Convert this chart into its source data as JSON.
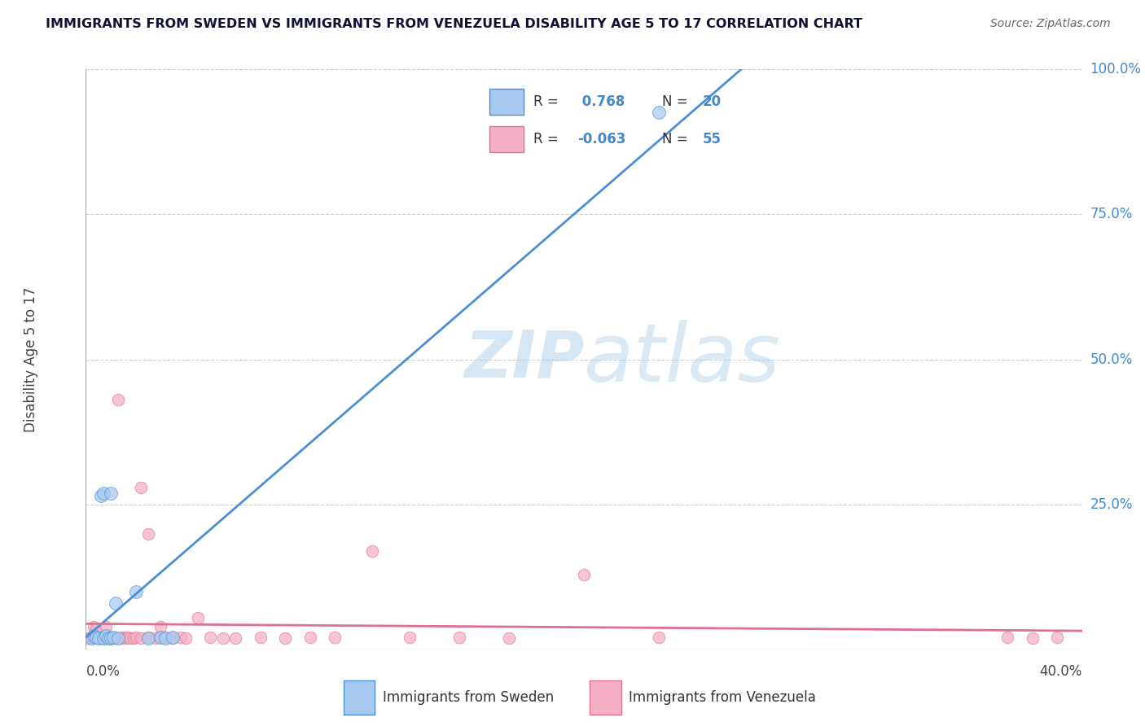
{
  "title": "IMMIGRANTS FROM SWEDEN VS IMMIGRANTS FROM VENEZUELA DISABILITY AGE 5 TO 17 CORRELATION CHART",
  "source": "Source: ZipAtlas.com",
  "ylabel_text": "Disability Age 5 to 17",
  "xmin": 0.0,
  "xmax": 0.4,
  "ymin": 0.0,
  "ymax": 1.0,
  "sweden_R": 0.768,
  "sweden_N": 20,
  "venezuela_R": -0.063,
  "venezuela_N": 55,
  "sweden_color": "#a8caf0",
  "venezuela_color": "#f5b0c5",
  "sweden_line_color": "#4a8fd4",
  "venezuela_line_color": "#e07090",
  "watermark_color": "#c8dff5",
  "background_color": "#ffffff",
  "grid_color": "#d0d0d0",
  "label_color": "#4488cc",
  "sweden_scatter_x": [
    0.002,
    0.003,
    0.004,
    0.005,
    0.006,
    0.007,
    0.007,
    0.008,
    0.009,
    0.01,
    0.01,
    0.011,
    0.012,
    0.013,
    0.02,
    0.025,
    0.03,
    0.032,
    0.035,
    0.23
  ],
  "sweden_scatter_y": [
    0.02,
    0.025,
    0.022,
    0.02,
    0.265,
    0.27,
    0.02,
    0.025,
    0.02,
    0.02,
    0.27,
    0.022,
    0.08,
    0.02,
    0.1,
    0.02,
    0.022,
    0.02,
    0.022,
    0.925
  ],
  "venezuela_scatter_x": [
    0.001,
    0.002,
    0.003,
    0.003,
    0.004,
    0.004,
    0.005,
    0.005,
    0.006,
    0.006,
    0.007,
    0.007,
    0.008,
    0.008,
    0.009,
    0.01,
    0.01,
    0.011,
    0.012,
    0.013,
    0.014,
    0.015,
    0.016,
    0.017,
    0.018,
    0.019,
    0.02,
    0.022,
    0.022,
    0.025,
    0.025,
    0.028,
    0.03,
    0.03,
    0.032,
    0.035,
    0.038,
    0.04,
    0.045,
    0.05,
    0.055,
    0.06,
    0.07,
    0.08,
    0.09,
    0.1,
    0.115,
    0.13,
    0.15,
    0.17,
    0.2,
    0.23,
    0.37,
    0.38,
    0.39
  ],
  "venezuela_scatter_y": [
    0.02,
    0.022,
    0.02,
    0.04,
    0.022,
    0.035,
    0.02,
    0.022,
    0.02,
    0.022,
    0.02,
    0.022,
    0.02,
    0.04,
    0.022,
    0.02,
    0.022,
    0.02,
    0.02,
    0.43,
    0.02,
    0.022,
    0.02,
    0.022,
    0.02,
    0.02,
    0.022,
    0.28,
    0.02,
    0.2,
    0.022,
    0.02,
    0.022,
    0.04,
    0.022,
    0.02,
    0.022,
    0.02,
    0.055,
    0.022,
    0.02,
    0.02,
    0.022,
    0.02,
    0.022,
    0.022,
    0.17,
    0.022,
    0.022,
    0.02,
    0.13,
    0.022,
    0.022,
    0.02,
    0.022
  ]
}
